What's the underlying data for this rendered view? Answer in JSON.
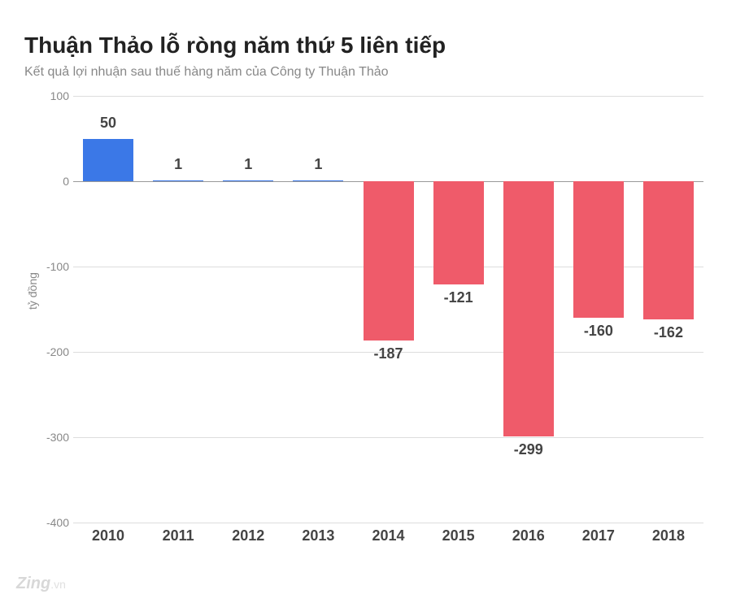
{
  "title": "Thuận Thảo lỗ ròng năm thứ 5 liên tiếp",
  "subtitle": "Kết quả lợi nhuận sau thuế hàng năm của Công ty Thuận Thảo",
  "chart": {
    "type": "bar",
    "y_label": "tỷ đồng",
    "y_min": -400,
    "y_max": 100,
    "y_tick_step": 100,
    "y_ticks": [
      -400,
      -300,
      -200,
      -100,
      0,
      100
    ],
    "categories": [
      "2010",
      "2011",
      "2012",
      "2013",
      "2014",
      "2015",
      "2016",
      "2017",
      "2018"
    ],
    "values": [
      50,
      1,
      1,
      1,
      -187,
      -121,
      -299,
      -160,
      -162
    ],
    "bar_width_ratio": 0.72,
    "positive_color": "#3b78e7",
    "negative_color": "#ef5b6a",
    "background_color": "#ffffff",
    "grid_color": "#dddddd",
    "zero_line_color": "#999999",
    "title_fontsize": 28,
    "subtitle_fontsize": 16,
    "label_fontsize": 18,
    "tick_fontsize": 14,
    "text_color": "#444444",
    "muted_text_color": "#888888"
  },
  "watermark": {
    "brand": "Zing",
    "suffix": ".vn"
  }
}
